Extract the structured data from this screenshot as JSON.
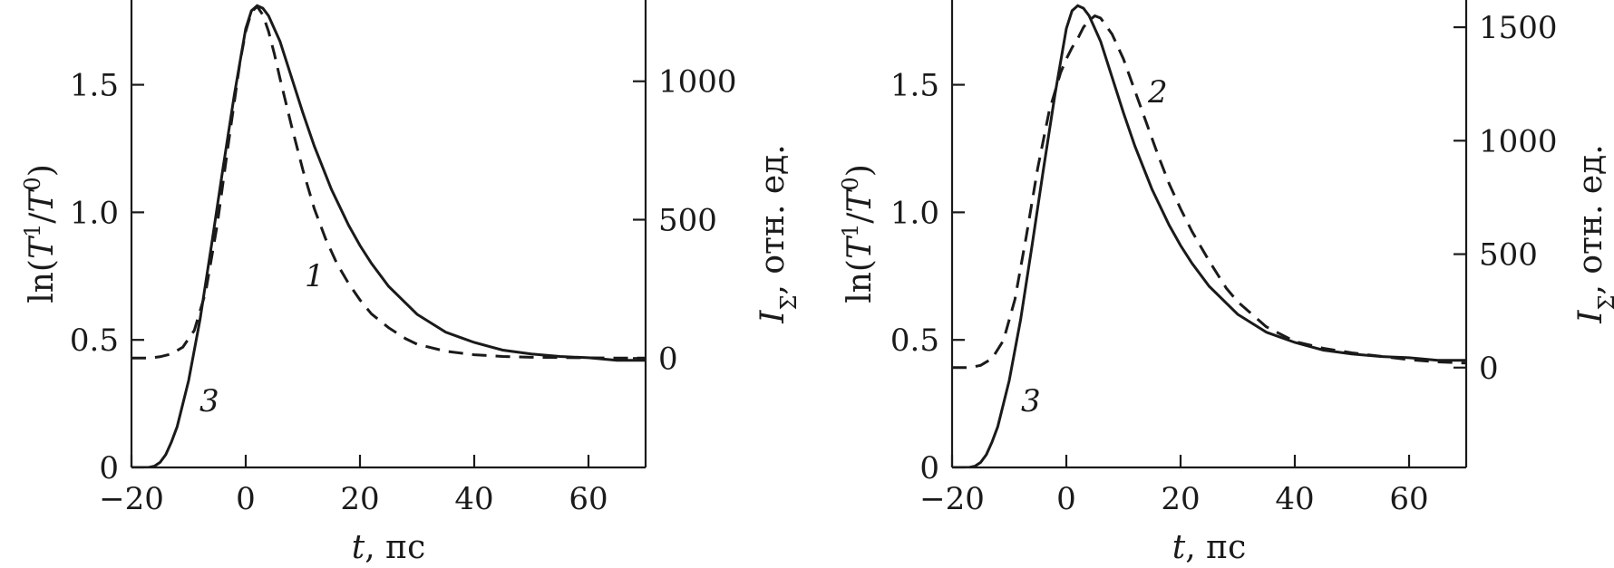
{
  "chart_data": [
    {
      "type": "line",
      "x_label": {
        "main": "t",
        "rest": ", пс"
      },
      "y_left_label": {
        "pre": "ln(",
        "T": "T",
        "sup1": "1",
        "slash": "/",
        "T2": "T",
        "sup2": "0",
        "post": ")"
      },
      "y_right_label": {
        "I": "I",
        "sub": "Σ",
        "rest": ", отн. ед."
      },
      "xlim": [
        -20,
        70
      ],
      "ylim_left": [
        0,
        1.85
      ],
      "ylim_right": [
        -395,
        1310
      ],
      "x_ticks": [
        -20,
        0,
        20,
        40,
        60
      ],
      "x_tick_labels": [
        "−20",
        "0",
        "20",
        "40",
        "60"
      ],
      "y_left_ticks": [
        0,
        0.5,
        1.0,
        1.5
      ],
      "y_left_tick_labels": [
        "0",
        "0.5",
        "1.0",
        "1.5"
      ],
      "y_right_ticks": [
        0,
        500,
        1000
      ],
      "y_right_tick_labels": [
        "0",
        "500",
        "1000"
      ],
      "series": [
        {
          "name": "3",
          "axis": "left",
          "style": "solid",
          "x": [
            -20,
            -17,
            -16,
            -15,
            -14,
            -13,
            -12,
            -10,
            -8,
            -6,
            -4,
            -2,
            0,
            1,
            2,
            3,
            4,
            6,
            8,
            10,
            12,
            15,
            18,
            20,
            22,
            25,
            30,
            35,
            40,
            45,
            50,
            55,
            60,
            65,
            70
          ],
          "y": [
            0,
            0,
            0.005,
            0.02,
            0.05,
            0.1,
            0.16,
            0.34,
            0.58,
            0.87,
            1.17,
            1.46,
            1.72,
            1.79,
            1.81,
            1.8,
            1.77,
            1.67,
            1.53,
            1.39,
            1.26,
            1.09,
            0.95,
            0.87,
            0.8,
            0.71,
            0.6,
            0.53,
            0.49,
            0.46,
            0.445,
            0.435,
            0.43,
            0.42,
            0.42
          ]
        },
        {
          "name": "1",
          "axis": "right",
          "style": "dashed",
          "x": [
            -20,
            -17,
            -15,
            -13,
            -11,
            -9,
            -7,
            -5,
            -3,
            -1,
            0,
            1,
            2,
            3,
            4,
            5,
            6,
            8,
            10,
            12,
            14,
            16,
            18,
            20,
            22,
            25,
            28,
            30,
            35,
            40,
            45,
            50,
            55,
            60,
            65,
            70
          ],
          "y": [
            0,
            0,
            5,
            15,
            40,
            100,
            240,
            480,
            780,
            1070,
            1180,
            1250,
            1270,
            1240,
            1180,
            1100,
            1010,
            840,
            680,
            540,
            430,
            340,
            270,
            210,
            160,
            110,
            70,
            50,
            25,
            12,
            6,
            3,
            2,
            1,
            0,
            0
          ]
        }
      ],
      "annotations": [
        "1",
        "3"
      ]
    },
    {
      "type": "line",
      "x_label": {
        "main": "t",
        "rest": ", пс"
      },
      "y_left_label": {
        "pre": "ln(",
        "T": "T",
        "sup1": "1",
        "slash": "/",
        "T2": "T",
        "sup2": "0",
        "post": ")"
      },
      "y_right_label": {
        "I": "I",
        "sub": "Σ",
        "rest": ", отн. ед."
      },
      "xlim": [
        -20,
        70
      ],
      "ylim_left": [
        0,
        1.85
      ],
      "ylim_right": [
        -440,
        1640
      ],
      "x_ticks": [
        -20,
        0,
        20,
        40,
        60
      ],
      "x_tick_labels": [
        "−20",
        "0",
        "20",
        "40",
        "60"
      ],
      "y_left_ticks": [
        0,
        0.5,
        1.0,
        1.5
      ],
      "y_left_tick_labels": [
        "0",
        "0.5",
        "1.0",
        "1.5"
      ],
      "y_right_ticks": [
        0,
        500,
        1000,
        1500
      ],
      "y_right_tick_labels": [
        "0",
        "500",
        "1000",
        "1500"
      ],
      "series": [
        {
          "name": "3",
          "axis": "left",
          "style": "solid",
          "x": [
            -20,
            -17,
            -16,
            -15,
            -14,
            -13,
            -12,
            -10,
            -8,
            -6,
            -4,
            -2,
            0,
            1,
            2,
            3,
            4,
            6,
            8,
            10,
            12,
            15,
            18,
            20,
            22,
            25,
            30,
            35,
            40,
            45,
            50,
            55,
            60,
            65,
            70
          ],
          "y": [
            0,
            0,
            0.005,
            0.02,
            0.05,
            0.1,
            0.16,
            0.34,
            0.58,
            0.87,
            1.17,
            1.46,
            1.72,
            1.79,
            1.81,
            1.8,
            1.77,
            1.67,
            1.53,
            1.39,
            1.26,
            1.09,
            0.95,
            0.87,
            0.8,
            0.71,
            0.6,
            0.53,
            0.49,
            0.46,
            0.445,
            0.435,
            0.43,
            0.42,
            0.42
          ]
        },
        {
          "name": "2",
          "axis": "right",
          "style": "dashed",
          "x": [
            -20,
            -17,
            -15,
            -13,
            -11,
            -9,
            -7,
            -5,
            -3,
            -1,
            0,
            1,
            2,
            3,
            4,
            5,
            6,
            8,
            10,
            12,
            14,
            16,
            18,
            20,
            22,
            25,
            28,
            30,
            35,
            40,
            45,
            50,
            55,
            60,
            65,
            70
          ],
          "y": [
            0,
            0,
            10,
            40,
            120,
            300,
            580,
            880,
            1130,
            1300,
            1360,
            1410,
            1450,
            1500,
            1530,
            1550,
            1540,
            1470,
            1360,
            1220,
            1080,
            940,
            810,
            700,
            600,
            470,
            350,
            290,
            180,
            115,
            85,
            65,
            50,
            35,
            25,
            20
          ]
        }
      ],
      "annotations": [
        "2",
        "3"
      ]
    }
  ]
}
